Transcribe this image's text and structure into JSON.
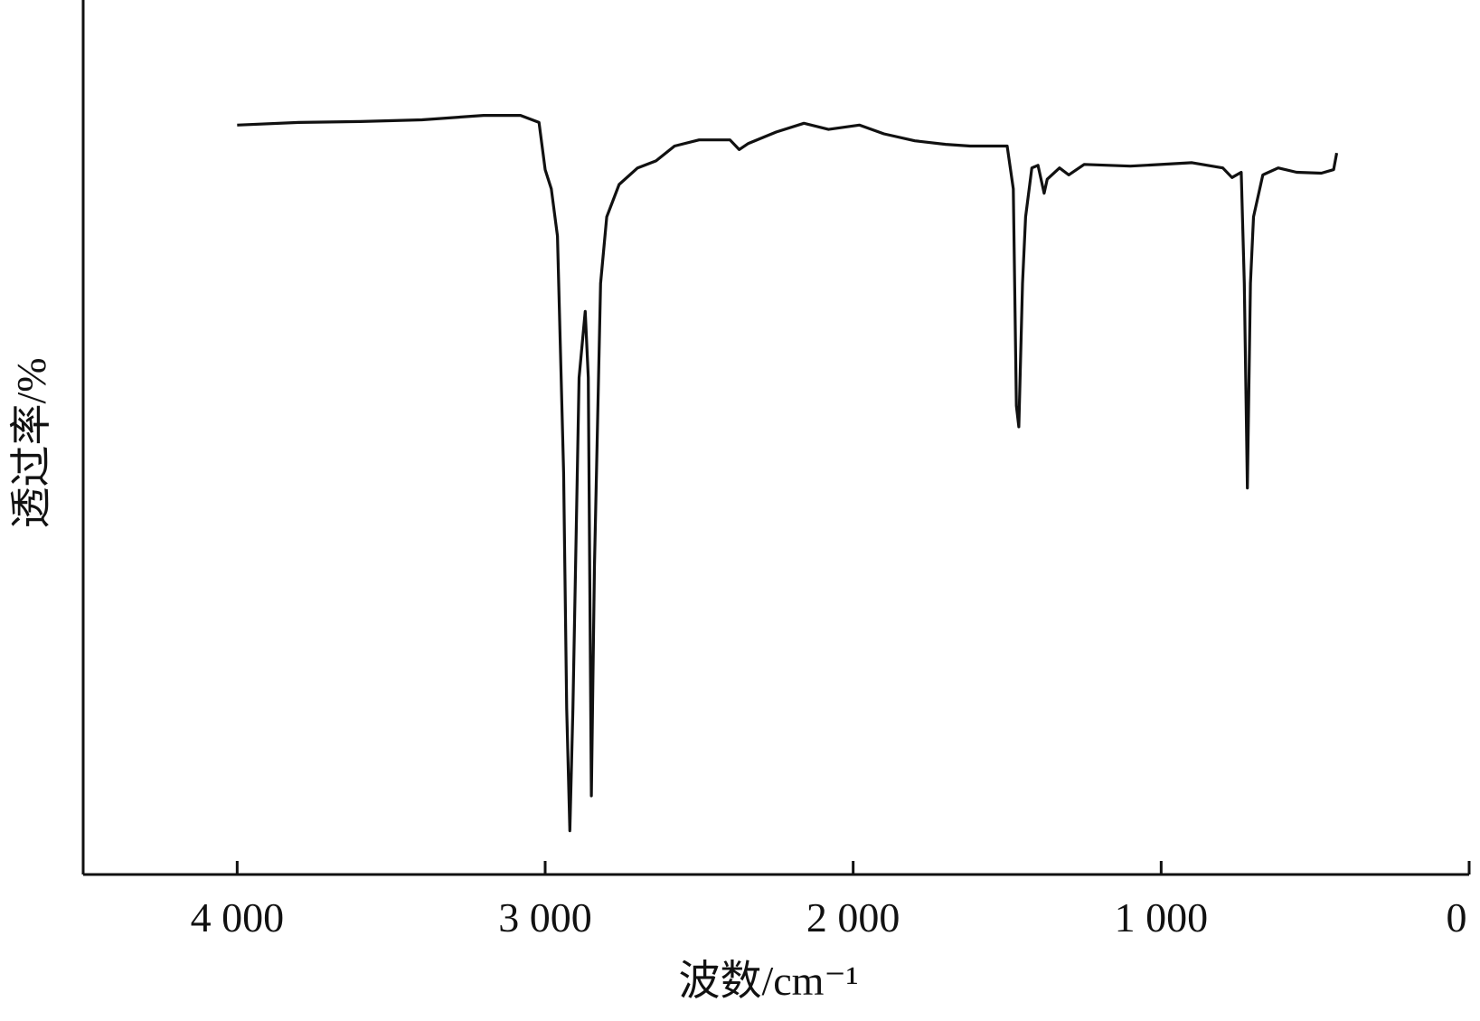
{
  "chart_data": {
    "type": "line",
    "x_label": "波数/cm⁻¹",
    "y_label": "透过率/%",
    "xlim": [
      4500,
      0
    ],
    "xticks": [
      {
        "value": 4000,
        "label": "4 000"
      },
      {
        "value": 3000,
        "label": "3 000"
      },
      {
        "value": 2000,
        "label": "2 000"
      },
      {
        "value": 1000,
        "label": "1 000"
      },
      0
    ],
    "ylim": [
      0,
      100
    ],
    "x": [
      4000,
      3800,
      3600,
      3400,
      3200,
      3080,
      3020,
      3000,
      2980,
      2960,
      2940,
      2930,
      2920,
      2910,
      2890,
      2870,
      2860,
      2850,
      2840,
      2820,
      2800,
      2760,
      2700,
      2640,
      2580,
      2500,
      2400,
      2370,
      2340,
      2250,
      2160,
      2080,
      1980,
      1900,
      1800,
      1700,
      1620,
      1500,
      1480,
      1470,
      1462,
      1450,
      1440,
      1420,
      1400,
      1380,
      1370,
      1330,
      1300,
      1250,
      1100,
      900,
      800,
      770,
      740,
      730,
      720,
      710,
      700,
      670,
      620,
      560,
      480,
      440,
      430
    ],
    "series": [
      {
        "color": "#111111",
        "values": [
          85.7,
          86.0,
          86.1,
          86.3,
          86.8,
          86.8,
          86.0,
          80.6,
          78.4,
          73.0,
          46.0,
          19.0,
          5.0,
          19.0,
          56.8,
          64.4,
          56.8,
          9.0,
          35.2,
          67.6,
          75.2,
          78.9,
          80.8,
          81.6,
          83.3,
          84.0,
          84.0,
          82.9,
          83.6,
          84.9,
          85.9,
          85.2,
          85.7,
          84.7,
          83.9,
          83.5,
          83.3,
          83.3,
          78.4,
          53.6,
          51.2,
          67.6,
          75.2,
          80.8,
          81.1,
          77.9,
          79.5,
          80.8,
          80.0,
          81.2,
          81.0,
          81.4,
          80.8,
          79.7,
          80.3,
          67.6,
          44.2,
          67.6,
          75.2,
          80.0,
          80.8,
          80.3,
          80.2,
          80.6,
          82.5
        ]
      }
    ]
  }
}
